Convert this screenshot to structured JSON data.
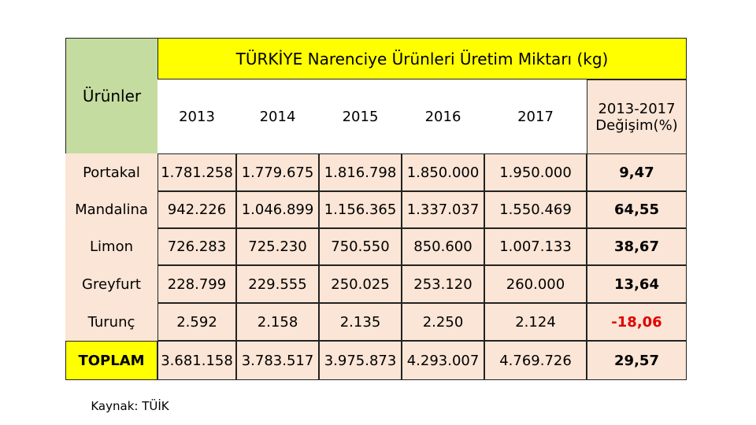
{
  "table": {
    "title": "TÜRKİYE Narenciye Ürünleri Üretim Miktarı (kg)",
    "row_header": "Ürünler",
    "columns": [
      "2013",
      "2014",
      "2015",
      "2016",
      "2017",
      "2013-2017 Değişim(%)"
    ],
    "rows": [
      [
        "Portakal",
        "1.781.258",
        "1.779.675",
        "1.816.798",
        "1.850.000",
        "1.950.000",
        "9,47"
      ],
      [
        "Mandalina",
        "942.226",
        "1.046.899",
        "1.156.365",
        "1.337.037",
        "1.550.469",
        "64,55"
      ],
      [
        "Limon",
        "726.283",
        "725.230",
        "750.550",
        "850.600",
        "1.007.133",
        "38,67"
      ],
      [
        "Greyfurt",
        "228.799",
        "229.555",
        "250.025",
        "253.120",
        "260.000",
        "13,64"
      ],
      [
        "Turunç",
        "2.592",
        "2.158",
        "2.135",
        "2.250",
        "2.124",
        "-18,06"
      ],
      [
        "TOPLAM",
        "3.681.158",
        "3.783.517",
        "3.975.873",
        "4.293.007",
        "4.769.726",
        "29,57"
      ]
    ]
  },
  "source": "Kaynak: TÜİK"
}
